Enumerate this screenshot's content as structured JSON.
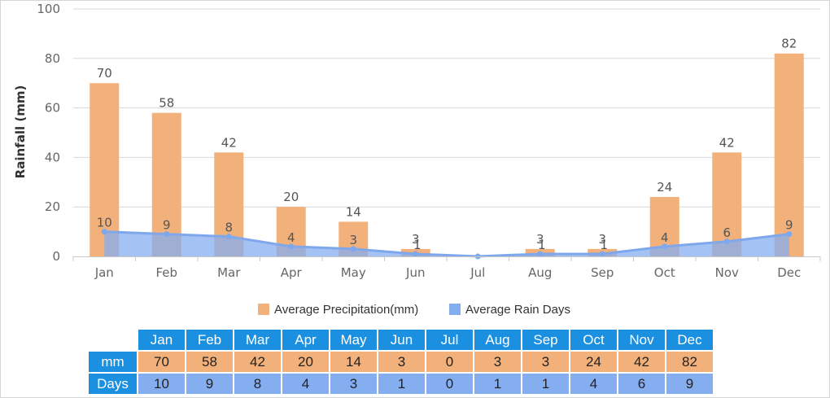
{
  "chart_data": {
    "type": "bar",
    "categories": [
      "Jan",
      "Feb",
      "Mar",
      "Apr",
      "May",
      "Jun",
      "Jul",
      "Aug",
      "Sep",
      "Oct",
      "Nov",
      "Dec"
    ],
    "series": [
      {
        "name": "Average Precipitation(mm)",
        "type": "bar",
        "values": [
          70,
          58,
          42,
          20,
          14,
          3,
          0,
          3,
          3,
          24,
          42,
          82
        ],
        "labels": [
          "70",
          "58",
          "42",
          "20",
          "14",
          "3",
          "",
          "3",
          "3",
          "24",
          "42",
          "82"
        ],
        "color": "#f2b07b"
      },
      {
        "name": "Average Rain Days",
        "type": "area",
        "values": [
          10,
          9,
          8,
          4,
          3,
          1,
          0,
          1,
          1,
          4,
          6,
          9
        ],
        "labels": [
          "10",
          "9",
          "8",
          "4",
          "3",
          "1",
          "",
          "1",
          "1",
          "4",
          "6",
          "9"
        ],
        "color": "#85aef0"
      }
    ],
    "ylabel": "Rainfall (mm)",
    "xlabel": "",
    "ylim": [
      0,
      100
    ],
    "yticks": [
      "0",
      "20",
      "40",
      "60",
      "80",
      "100"
    ],
    "grid": true,
    "legend_position": "bottom"
  },
  "table": {
    "months": [
      "Jan",
      "Feb",
      "Mar",
      "Apr",
      "May",
      "Jun",
      "Jul",
      "Aug",
      "Sep",
      "Oct",
      "Nov",
      "Dec"
    ],
    "rows": [
      {
        "label": "mm",
        "values": [
          "70",
          "58",
          "42",
          "20",
          "14",
          "3",
          "0",
          "3",
          "3",
          "24",
          "42",
          "82"
        ]
      },
      {
        "label": "Days",
        "values": [
          "10",
          "9",
          "8",
          "4",
          "3",
          "1",
          "0",
          "1",
          "1",
          "4",
          "6",
          "9"
        ]
      }
    ]
  },
  "colors": {
    "precipitation": "#f2b07b",
    "rain_days": "#85aef0",
    "rain_days_line": "#7fa8ec",
    "table_header": "#1b8fe0"
  }
}
